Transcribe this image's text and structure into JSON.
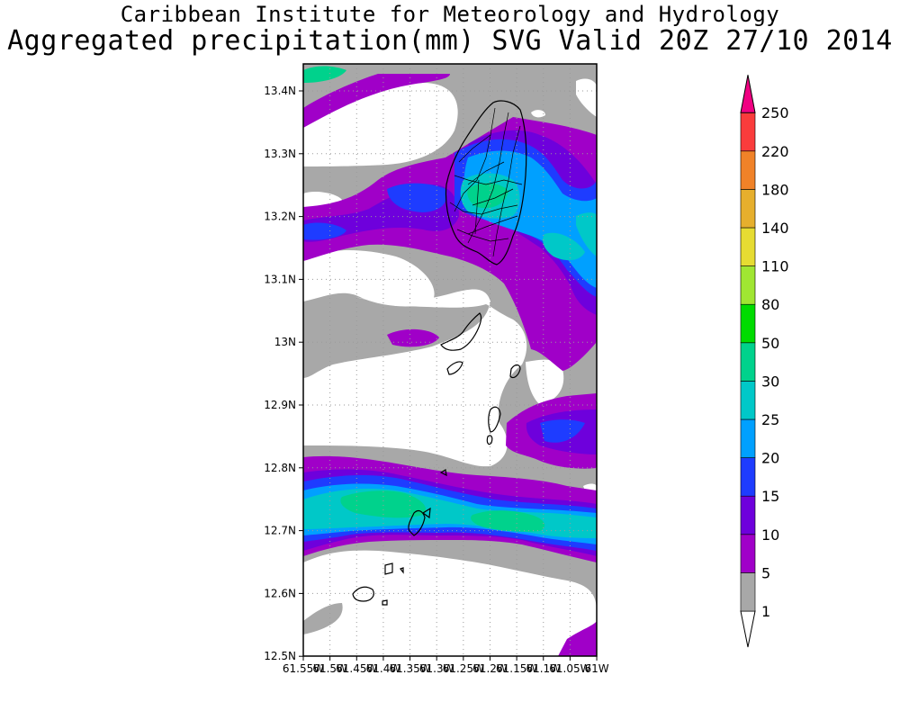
{
  "header": {
    "institute": "Caribbean Institute for Meteorology and Hydrology",
    "product": "Aggregated precipitation(mm) SVG Valid 20Z 27/10 2014"
  },
  "map": {
    "lat_labels": [
      "13.4N",
      "13.3N",
      "13.2N",
      "13.1N",
      "13N",
      "12.9N",
      "12.8N",
      "12.7N",
      "12.6N",
      "12.5N"
    ],
    "lon_labels": [
      "61.55W",
      "61.5W",
      "61.45W",
      "61.4W",
      "61.35W",
      "61.3W",
      "61.25W",
      "61.2W",
      "61.15W",
      "61.1W",
      "61.05W",
      "61W"
    ],
    "grid": true
  },
  "legend": {
    "unit": "mm",
    "levels": [
      "1",
      "5",
      "10",
      "15",
      "20",
      "25",
      "30",
      "50",
      "80",
      "110",
      "140",
      "180",
      "220",
      "250"
    ],
    "colors": [
      "#ffffff",
      "#a8a8a8",
      "#a000c8",
      "#6e00dc",
      "#1e3cff",
      "#00a0ff",
      "#00c8c8",
      "#00d28c",
      "#00dc00",
      "#a0e632",
      "#e6dc32",
      "#e6af2d",
      "#f08228",
      "#fa3c3c",
      "#f00082"
    ]
  }
}
